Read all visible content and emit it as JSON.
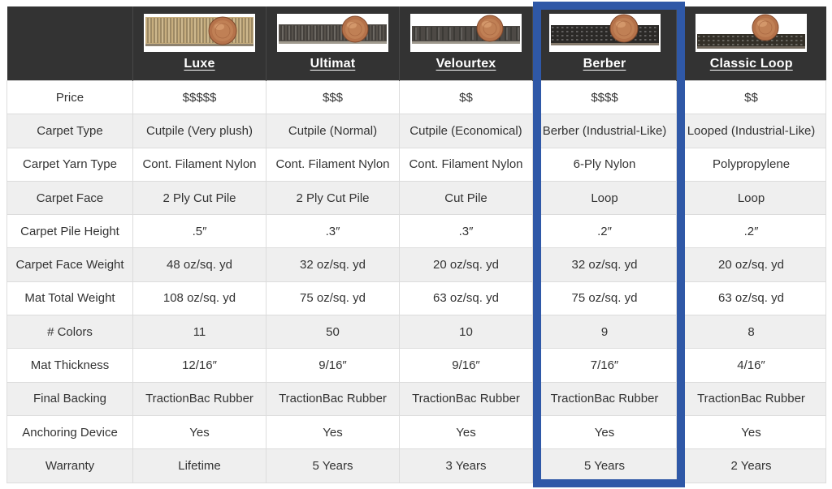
{
  "table": {
    "corner_label": "",
    "header_bg": "#333333",
    "stripe_color": "#efefef",
    "border_color": "#dcdcdc",
    "text_color": "#333333",
    "row_labels": [
      "Price",
      "Carpet Type",
      "Carpet Yarn Type",
      "Carpet Face",
      "Carpet Pile Height",
      "Carpet Face Weight",
      "Mat Total Weight",
      "# Colors",
      "Mat Thickness",
      "Final Backing",
      "Anchoring Device",
      "Warranty"
    ],
    "columns": [
      {
        "name": "Luxe",
        "highlighted": false,
        "swatch_image": "luxe-carpet-penny-photo",
        "values": [
          "$$$$$",
          "Cutpile (Very plush)",
          "Cont. Filament Nylon",
          "2 Ply Cut Pile",
          ".5″",
          "48 oz/sq. yd",
          "108 oz/sq. yd",
          "11",
          "12/16″",
          "TractionBac Rubber",
          "Yes",
          "Lifetime"
        ]
      },
      {
        "name": "Ultimat",
        "highlighted": false,
        "swatch_image": "ultimat-carpet-penny-photo",
        "values": [
          "$$$",
          "Cutpile (Normal)",
          "Cont. Filament Nylon",
          "2 Ply Cut Pile",
          ".3″",
          "32 oz/sq. yd",
          "75 oz/sq. yd",
          "50",
          "9/16″",
          "TractionBac Rubber",
          "Yes",
          "5 Years"
        ]
      },
      {
        "name": "Velourtex",
        "highlighted": false,
        "swatch_image": "velourtex-carpet-penny-photo",
        "values": [
          "$$",
          "Cutpile (Economical)",
          "Cont. Filament Nylon",
          "Cut Pile",
          ".3″",
          "20 oz/sq. yd",
          "63 oz/sq. yd",
          "10",
          "9/16″",
          "TractionBac Rubber",
          "Yes",
          "3 Years"
        ]
      },
      {
        "name": "Berber",
        "highlighted": true,
        "swatch_image": "berber-carpet-penny-photo",
        "values": [
          "$$$$",
          "Berber (Industrial-Like)",
          "6-Ply Nylon",
          "Loop",
          ".2″",
          "32 oz/sq. yd",
          "75 oz/sq. yd",
          "9",
          "7/16″",
          "TractionBac Rubber",
          "Yes",
          "5 Years"
        ]
      },
      {
        "name": "Classic Loop",
        "highlighted": false,
        "swatch_image": "classic-loop-carpet-penny-photo",
        "values": [
          "$$",
          "Looped (Industrial-Like)",
          "Polypropylene",
          "Loop",
          ".2″",
          "20 oz/sq. yd",
          "63 oz/sq. yd",
          "8",
          "4/16″",
          "TractionBac Rubber",
          "Yes",
          "2 Years"
        ]
      }
    ]
  },
  "highlight": {
    "column": "Berber",
    "color": "#2f58a7"
  },
  "chart_data": {
    "type": "table",
    "title": "Carpet mat product comparison",
    "row_labels": [
      "Price",
      "Carpet Type",
      "Carpet Yarn Type",
      "Carpet Face",
      "Carpet Pile Height",
      "Carpet Face Weight",
      "Mat Total Weight",
      "# Colors",
      "Mat Thickness",
      "Final Backing",
      "Anchoring Device",
      "Warranty"
    ],
    "columns": [
      "Luxe",
      "Ultimat",
      "Velourtex",
      "Berber",
      "Classic Loop"
    ],
    "highlighted_column": "Berber",
    "cells": [
      [
        "$$$$$",
        "$$$",
        "$$",
        "$$$$",
        "$$"
      ],
      [
        "Cutpile (Very plush)",
        "Cutpile (Normal)",
        "Cutpile (Economical)",
        "Berber (Industrial-Like)",
        "Looped (Industrial-Like)"
      ],
      [
        "Cont. Filament Nylon",
        "Cont. Filament Nylon",
        "Cont. Filament Nylon",
        "6-Ply Nylon",
        "Polypropylene"
      ],
      [
        "2 Ply Cut Pile",
        "2 Ply Cut Pile",
        "Cut Pile",
        "Loop",
        "Loop"
      ],
      [
        ".5″",
        ".3″",
        ".3″",
        ".2″",
        ".2″"
      ],
      [
        "48 oz/sq. yd",
        "32 oz/sq. yd",
        "20 oz/sq. yd",
        "32 oz/sq. yd",
        "20 oz/sq. yd"
      ],
      [
        "108 oz/sq. yd",
        "75 oz/sq. yd",
        "63 oz/sq. yd",
        "75 oz/sq. yd",
        "63 oz/sq. yd"
      ],
      [
        "11",
        "50",
        "10",
        "9",
        "8"
      ],
      [
        "12/16″",
        "9/16″",
        "9/16″",
        "7/16″",
        "4/16″"
      ],
      [
        "TractionBac Rubber",
        "TractionBac Rubber",
        "TractionBac Rubber",
        "TractionBac Rubber",
        "TractionBac Rubber"
      ],
      [
        "Yes",
        "Yes",
        "Yes",
        "Yes",
        "Yes"
      ],
      [
        "Lifetime",
        "5 Years",
        "3 Years",
        "5 Years",
        "2 Years"
      ]
    ]
  }
}
